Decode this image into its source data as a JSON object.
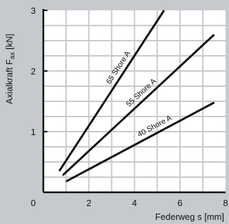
{
  "chart_data": {
    "type": "line",
    "title": "",
    "xlabel": "Federweg s [mm]",
    "ylabel_main": "Axialkraft F",
    "ylabel_sub": "ax",
    "ylabel_unit": " [kN]",
    "xlim": [
      0,
      8
    ],
    "ylim": [
      0,
      3
    ],
    "x_ticks": [
      0,
      2,
      4,
      6,
      8
    ],
    "y_ticks": [
      0,
      1,
      2,
      3
    ],
    "x_tick_labels": [
      "0",
      "2",
      "4",
      "6",
      "8"
    ],
    "y_tick_labels": [
      "0",
      "1",
      "2",
      "3"
    ],
    "grid": true,
    "series": [
      {
        "name": "65 Shore A",
        "x": [
          0.7,
          5.3
        ],
        "y": [
          0.35,
          3.0
        ]
      },
      {
        "name": "55 Shore A",
        "x": [
          0.85,
          7.5
        ],
        "y": [
          0.28,
          2.6
        ]
      },
      {
        "name": "40 Shore A",
        "x": [
          1.0,
          7.5
        ],
        "y": [
          0.18,
          1.48
        ]
      }
    ],
    "colors": {
      "background": "#c6cacf",
      "plot_area": "#ffffff",
      "grid": "#c6cacf",
      "line": "#111111"
    }
  }
}
